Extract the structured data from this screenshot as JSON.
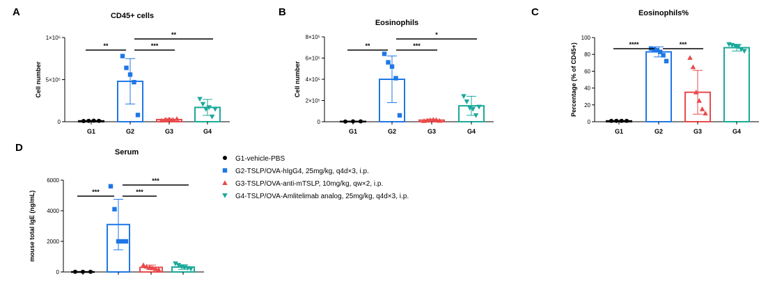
{
  "colors": {
    "G1": "#000000",
    "G2": "#1f77e6",
    "G3": "#e84a4a",
    "G4": "#1aa99a"
  },
  "legend": [
    {
      "group": "G1",
      "label": "G1-vehicle-PBS",
      "marker": "circle"
    },
    {
      "group": "G2",
      "label": "G2-TSLP/OVA-hIgG4, 25mg/kg, q4d×3, i.p.",
      "marker": "square"
    },
    {
      "group": "G3",
      "label": "G3-TSLP/OVA-anti-mTSLP, 10mg/kg, qw×2, i.p.",
      "marker": "triangle-up"
    },
    {
      "group": "G4",
      "label": "G4-TSLP/OVA-Amlitelimab analog, 25mg/kg, q4d×3, i.p.",
      "marker": "triangle-down"
    }
  ],
  "chart_data": [
    {
      "panel": "A",
      "type": "bar",
      "title": "CD45+ cells",
      "ylabel": "Cell number",
      "categories": [
        "G1",
        "G2",
        "G3",
        "G4"
      ],
      "ylim": [
        0,
        1000000
      ],
      "yticks": [
        {
          "v": 0,
          "t": "0"
        },
        {
          "v": 500000,
          "t": "5×10⁵"
        },
        {
          "v": 1000000,
          "t": "1×10⁶"
        }
      ],
      "means": [
        10000,
        480000,
        25000,
        170000
      ],
      "errors": [
        5000,
        270000,
        15000,
        95000
      ],
      "points": [
        [
          8000,
          10000,
          12000,
          10000
        ],
        [
          780000,
          640000,
          560000,
          470000,
          80000
        ],
        [
          15000,
          25000,
          30000,
          20000,
          35000
        ],
        [
          270000,
          210000,
          150000,
          170000,
          60000,
          150000
        ]
      ],
      "comparisons": [
        {
          "a": 0,
          "b": 1,
          "label": "**"
        },
        {
          "a": 1,
          "b": 2,
          "label": "***"
        },
        {
          "a": 1,
          "b": 3,
          "label": "**"
        }
      ]
    },
    {
      "panel": "B",
      "type": "bar",
      "title": "Eosinophils",
      "ylabel": "Cell number",
      "categories": [
        "G1",
        "G2",
        "G3",
        "G4"
      ],
      "ylim": [
        0,
        800000
      ],
      "yticks": [
        {
          "v": 0,
          "t": "0"
        },
        {
          "v": 200000,
          "t": "2×10⁵"
        },
        {
          "v": 400000,
          "t": "4×10⁵"
        },
        {
          "v": 600000,
          "t": "6×10⁵"
        },
        {
          "v": 800000,
          "t": "8×10⁵"
        }
      ],
      "means": [
        3000,
        400000,
        15000,
        150000
      ],
      "errors": [
        2000,
        220000,
        10000,
        90000
      ],
      "points": [
        [
          2000,
          3000,
          3000
        ],
        [
          640000,
          560000,
          520000,
          410000,
          60000
        ],
        [
          8000,
          12000,
          15000,
          20000,
          18000,
          10000
        ],
        [
          240000,
          190000,
          130000,
          120000,
          60000,
          140000
        ]
      ],
      "comparisons": [
        {
          "a": 0,
          "b": 1,
          "label": "**"
        },
        {
          "a": 1,
          "b": 2,
          "label": "***"
        },
        {
          "a": 1,
          "b": 3,
          "label": "*"
        }
      ]
    },
    {
      "panel": "C",
      "type": "bar",
      "title": "Eosinophils%",
      "ylabel": "Percentage (% of CD45+)",
      "categories": [
        "G1",
        "G2",
        "G3",
        "G4"
      ],
      "ylim": [
        0,
        100
      ],
      "yticks": [
        {
          "v": 0,
          "t": "0"
        },
        {
          "v": 20,
          "t": "20"
        },
        {
          "v": 40,
          "t": "40"
        },
        {
          "v": 60,
          "t": "60"
        },
        {
          "v": 80,
          "t": "80"
        },
        {
          "v": 100,
          "t": "100"
        }
      ],
      "means": [
        1,
        83,
        35,
        88
      ],
      "errors": [
        0.5,
        6,
        26,
        4
      ],
      "points": [
        [
          1,
          1,
          1,
          1
        ],
        [
          87,
          86,
          85,
          83,
          79,
          72
        ],
        [
          76,
          65,
          35,
          25,
          15,
          10
        ],
        [
          92,
          91,
          90,
          89,
          86,
          84
        ]
      ],
      "comparisons": [
        {
          "a": 0,
          "b": 1,
          "label": "****"
        },
        {
          "a": 1,
          "b": 2,
          "label": "***"
        }
      ]
    },
    {
      "panel": "D",
      "type": "bar",
      "title": "Serum",
      "ylabel": "mouse total IgE (ng/mL)",
      "categories": [
        "",
        "",
        "",
        ""
      ],
      "ylim": [
        0,
        6000
      ],
      "yticks": [
        {
          "v": 0,
          "t": "0"
        },
        {
          "v": 2000,
          "t": "2000"
        },
        {
          "v": 4000,
          "t": "4000"
        },
        {
          "v": 6000,
          "t": "6000"
        }
      ],
      "means": [
        10,
        3100,
        300,
        320
      ],
      "errors": [
        5,
        1650,
        150,
        150
      ],
      "points": [
        [
          10,
          10,
          10
        ],
        [
          5600,
          4100,
          2000,
          2000,
          2000
        ],
        [
          450,
          350,
          300,
          250,
          200,
          150
        ],
        [
          550,
          450,
          350,
          300,
          250,
          200
        ]
      ],
      "comparisons": [
        {
          "a": 0,
          "b": 1,
          "label": "***"
        },
        {
          "a": 1,
          "b": 2,
          "label": "***"
        },
        {
          "a": 1,
          "b": 3,
          "label": "***"
        }
      ]
    }
  ]
}
